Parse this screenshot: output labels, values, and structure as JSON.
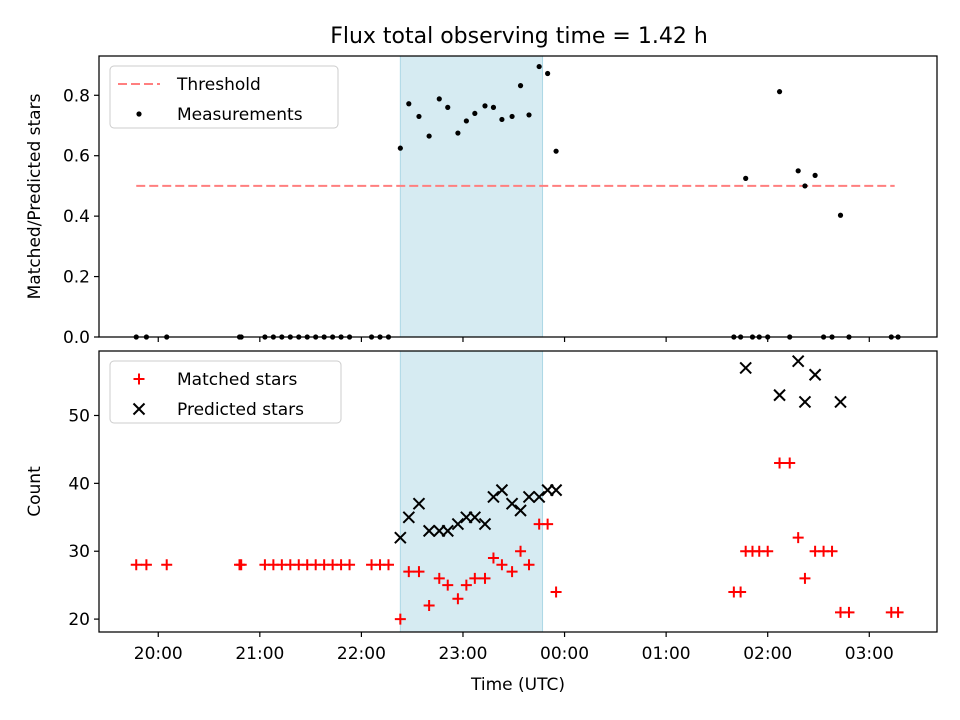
{
  "figure": {
    "title": "Flux total observing time = 1.42 h"
  },
  "colors": {
    "highlight": "#add8e6",
    "threshold": "#ff7f7f",
    "measurement": "#000000",
    "matched": "#ff0000",
    "predicted": "#000000"
  },
  "chart_data": [
    {
      "type": "scatter",
      "ylabel": "Matched/Predicted stars",
      "ylim": [
        0,
        0.93
      ],
      "yticks": [
        0.0,
        0.2,
        0.4,
        0.6,
        0.8
      ],
      "ytick_labels": [
        "0.0",
        "0.2",
        "0.4",
        "0.6",
        "0.8"
      ],
      "x_range": [
        "19:25",
        "03:40"
      ],
      "highlight_span": [
        "22:23",
        "23:47"
      ],
      "threshold": {
        "name": "Threshold",
        "value": 0.5,
        "x_start": "19:47",
        "x_end": "03:15"
      },
      "legend": {
        "position": "upper-left",
        "entries": [
          "Threshold",
          "Measurements"
        ]
      },
      "series": [
        {
          "name": "Measurements",
          "marker": "dot",
          "points": [
            [
              "19:47",
              0.0
            ],
            [
              "19:53",
              0.0
            ],
            [
              "20:05",
              0.0
            ],
            [
              "20:48",
              0.0
            ],
            [
              "20:49",
              0.0
            ],
            [
              "21:03",
              0.0
            ],
            [
              "21:08",
              0.0
            ],
            [
              "21:13",
              0.0
            ],
            [
              "21:18",
              0.0
            ],
            [
              "21:23",
              0.0
            ],
            [
              "21:28",
              0.0
            ],
            [
              "21:33",
              0.0
            ],
            [
              "21:38",
              0.0
            ],
            [
              "21:43",
              0.0
            ],
            [
              "21:48",
              0.0
            ],
            [
              "21:53",
              0.0
            ],
            [
              "22:06",
              0.0
            ],
            [
              "22:11",
              0.0
            ],
            [
              "22:16",
              0.0
            ],
            [
              "22:23",
              0.625
            ],
            [
              "22:28",
              0.772
            ],
            [
              "22:34",
              0.73
            ],
            [
              "22:40",
              0.665
            ],
            [
              "22:46",
              0.788
            ],
            [
              "22:51",
              0.76
            ],
            [
              "22:57",
              0.675
            ],
            [
              "23:02",
              0.715
            ],
            [
              "23:07",
              0.74
            ],
            [
              "23:13",
              0.765
            ],
            [
              "23:18",
              0.76
            ],
            [
              "23:23",
              0.72
            ],
            [
              "23:29",
              0.73
            ],
            [
              "23:34",
              0.832
            ],
            [
              "23:39",
              0.735
            ],
            [
              "23:45",
              0.895
            ],
            [
              "23:50",
              0.872
            ],
            [
              "23:55",
              0.615
            ],
            [
              "01:40",
              0.0
            ],
            [
              "01:44",
              0.0
            ],
            [
              "01:47",
              0.525
            ],
            [
              "01:51",
              0.0
            ],
            [
              "01:55",
              0.0
            ],
            [
              "02:00",
              0.0
            ],
            [
              "02:07",
              0.812
            ],
            [
              "02:13",
              0.0
            ],
            [
              "02:18",
              0.55
            ],
            [
              "02:22",
              0.5
            ],
            [
              "02:28",
              0.535
            ],
            [
              "02:33",
              0.0
            ],
            [
              "02:38",
              0.0
            ],
            [
              "02:43",
              0.403
            ],
            [
              "02:48",
              0.0
            ],
            [
              "03:13",
              0.0
            ],
            [
              "03:17",
              0.0
            ]
          ]
        }
      ]
    },
    {
      "type": "scatter",
      "xlabel": "Time (UTC)",
      "ylabel": "Count",
      "ylim": [
        18.1,
        59.5
      ],
      "yticks": [
        20,
        30,
        40,
        50
      ],
      "ytick_labels": [
        "20",
        "30",
        "40",
        "50"
      ],
      "x_range": [
        "19:25",
        "03:40"
      ],
      "xticks": [
        "20:00",
        "21:00",
        "22:00",
        "23:00",
        "00:00",
        "01:00",
        "02:00",
        "03:00"
      ],
      "highlight_span": [
        "22:23",
        "23:47"
      ],
      "legend": {
        "position": "upper-left",
        "entries": [
          "Matched stars",
          "Predicted stars"
        ]
      },
      "series": [
        {
          "name": "Matched stars",
          "marker": "plus",
          "points": [
            [
              "19:47",
              28
            ],
            [
              "19:53",
              28
            ],
            [
              "20:05",
              28
            ],
            [
              "20:48",
              28
            ],
            [
              "20:49",
              28
            ],
            [
              "21:03",
              28
            ],
            [
              "21:08",
              28
            ],
            [
              "21:13",
              28
            ],
            [
              "21:18",
              28
            ],
            [
              "21:23",
              28
            ],
            [
              "21:28",
              28
            ],
            [
              "21:33",
              28
            ],
            [
              "21:38",
              28
            ],
            [
              "21:43",
              28
            ],
            [
              "21:48",
              28
            ],
            [
              "21:53",
              28
            ],
            [
              "22:06",
              28
            ],
            [
              "22:11",
              28
            ],
            [
              "22:16",
              28
            ],
            [
              "22:23",
              20
            ],
            [
              "22:28",
              27
            ],
            [
              "22:34",
              27
            ],
            [
              "22:40",
              22
            ],
            [
              "22:46",
              26
            ],
            [
              "22:51",
              25
            ],
            [
              "22:57",
              23
            ],
            [
              "23:02",
              25
            ],
            [
              "23:07",
              26
            ],
            [
              "23:13",
              26
            ],
            [
              "23:18",
              29
            ],
            [
              "23:23",
              28
            ],
            [
              "23:29",
              27
            ],
            [
              "23:34",
              30
            ],
            [
              "23:39",
              28
            ],
            [
              "23:45",
              34
            ],
            [
              "23:50",
              34
            ],
            [
              "23:55",
              24
            ],
            [
              "01:40",
              24
            ],
            [
              "01:44",
              24
            ],
            [
              "01:47",
              30
            ],
            [
              "01:51",
              30
            ],
            [
              "01:55",
              30
            ],
            [
              "02:00",
              30
            ],
            [
              "02:07",
              43
            ],
            [
              "02:13",
              43
            ],
            [
              "02:18",
              32
            ],
            [
              "02:22",
              26
            ],
            [
              "02:28",
              30
            ],
            [
              "02:33",
              30
            ],
            [
              "02:38",
              30
            ],
            [
              "02:43",
              21
            ],
            [
              "02:48",
              21
            ],
            [
              "03:13",
              21
            ],
            [
              "03:17",
              21
            ]
          ]
        },
        {
          "name": "Predicted stars",
          "marker": "x",
          "points": [
            [
              "22:23",
              32
            ],
            [
              "22:28",
              35
            ],
            [
              "22:34",
              37
            ],
            [
              "22:40",
              33
            ],
            [
              "22:46",
              33
            ],
            [
              "22:51",
              33
            ],
            [
              "22:57",
              34
            ],
            [
              "23:02",
              35
            ],
            [
              "23:07",
              35
            ],
            [
              "23:13",
              34
            ],
            [
              "23:18",
              38
            ],
            [
              "23:23",
              39
            ],
            [
              "23:29",
              37
            ],
            [
              "23:34",
              36
            ],
            [
              "23:39",
              38
            ],
            [
              "23:45",
              38
            ],
            [
              "23:50",
              39
            ],
            [
              "23:55",
              39
            ],
            [
              "01:47",
              57
            ],
            [
              "02:07",
              53
            ],
            [
              "02:18",
              58
            ],
            [
              "02:22",
              52
            ],
            [
              "02:28",
              56
            ],
            [
              "02:43",
              52
            ]
          ]
        }
      ]
    }
  ]
}
